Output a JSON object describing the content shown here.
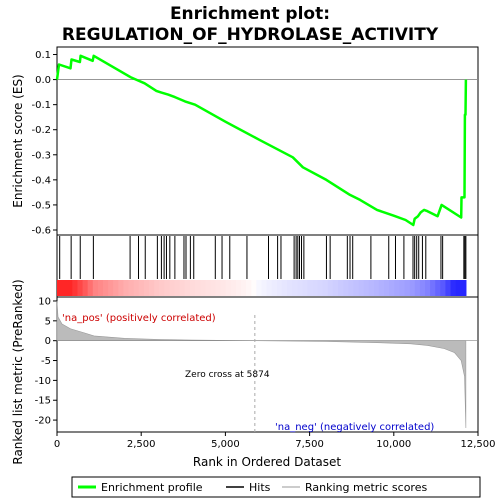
{
  "chart_data": {
    "type": "line",
    "title_line1": "Enrichment plot:",
    "title_line2": "REGULATION_OF_HYDROLASE_ACTIVITY",
    "es_ylabel": "Enrichment score (ES)",
    "rank_ylabel_line1": "Ranked list metric (PreRanked)",
    "xlabel": "Rank in Ordered Dataset",
    "xlim": [
      0,
      12500
    ],
    "es_ylim": [
      -0.62,
      0.13
    ],
    "metric_ylim": [
      -23,
      11
    ],
    "x_ticks": [
      0,
      2500,
      5000,
      7500,
      10000,
      12500
    ],
    "x_tick_labels": [
      "0",
      "2,500",
      "5,000",
      "7,500",
      "10,000",
      "12,500"
    ],
    "es_ticks": [
      0.1,
      0.0,
      -0.1,
      -0.2,
      -0.3,
      -0.4,
      -0.5,
      -0.6
    ],
    "es_tick_labels": [
      "0.1",
      "0.0",
      "-0.1",
      "-0.2",
      "-0.3",
      "-0.4",
      "-0.5",
      "-0.6"
    ],
    "metric_ticks": [
      10,
      5,
      0,
      -5,
      -10,
      -15,
      -20
    ],
    "metric_tick_labels": [
      "10",
      "5",
      "0",
      "-5",
      "-10",
      "-15",
      "-20"
    ],
    "enrichment_profile": [
      [
        0,
        0.0
      ],
      [
        60,
        0.06
      ],
      [
        400,
        0.045
      ],
      [
        430,
        0.08
      ],
      [
        680,
        0.07
      ],
      [
        700,
        0.095
      ],
      [
        1060,
        0.075
      ],
      [
        1090,
        0.095
      ],
      [
        2180,
        0.01
      ],
      [
        2350,
        0.0
      ],
      [
        2600,
        -0.015
      ],
      [
        2950,
        -0.045
      ],
      [
        3100,
        -0.052
      ],
      [
        3300,
        -0.06
      ],
      [
        3500,
        -0.07
      ],
      [
        3800,
        -0.087
      ],
      [
        4100,
        -0.1
      ],
      [
        5000,
        -0.168
      ],
      [
        6000,
        -0.24
      ],
      [
        7000,
        -0.31
      ],
      [
        7300,
        -0.35
      ],
      [
        8000,
        -0.4
      ],
      [
        8700,
        -0.46
      ],
      [
        9000,
        -0.48
      ],
      [
        9500,
        -0.52
      ],
      [
        10000,
        -0.543
      ],
      [
        10350,
        -0.56
      ],
      [
        10580,
        -0.58
      ],
      [
        10620,
        -0.555
      ],
      [
        10720,
        -0.545
      ],
      [
        10800,
        -0.53
      ],
      [
        10900,
        -0.52
      ],
      [
        11000,
        -0.525
      ],
      [
        11300,
        -0.545
      ],
      [
        11420,
        -0.5
      ],
      [
        12000,
        -0.55
      ],
      [
        12010,
        -0.47
      ],
      [
        12100,
        -0.47
      ],
      [
        12110,
        -0.14
      ],
      [
        12130,
        -0.14
      ],
      [
        12140,
        0.0
      ]
    ],
    "hits": [
      80,
      420,
      690,
      1080,
      2170,
      2420,
      2620,
      2980,
      3100,
      3180,
      3250,
      3350,
      3500,
      3770,
      3830,
      3960,
      4060,
      4700,
      4900,
      5130,
      5640,
      6280,
      6550,
      6650,
      7040,
      7100,
      7150,
      7200,
      7260,
      7330,
      8000,
      8110,
      8620,
      8700,
      8780,
      9320,
      9850,
      10050,
      10300,
      10570,
      10620,
      10680,
      10740,
      10850,
      10950,
      11400,
      11450,
      12080,
      12110,
      12140
    ],
    "ranked_metric": [
      [
        0,
        10
      ],
      [
        30,
        6
      ],
      [
        150,
        4.2
      ],
      [
        400,
        3
      ],
      [
        800,
        2
      ],
      [
        1100,
        1.2
      ],
      [
        2000,
        0.6
      ],
      [
        3000,
        0.3
      ],
      [
        4000,
        0.15
      ],
      [
        5874,
        0
      ],
      [
        8000,
        -0.2
      ],
      [
        9500,
        -0.5
      ],
      [
        10500,
        -0.8
      ],
      [
        11000,
        -1.2
      ],
      [
        11500,
        -2.0
      ],
      [
        11800,
        -3.0
      ],
      [
        12000,
        -5.0
      ],
      [
        12100,
        -9.0
      ],
      [
        12140,
        -22
      ]
    ],
    "zero_cross_label": "Zero cross at 5874",
    "zero_cross": 5874,
    "pos_label": "'na_pos' (positively correlated)",
    "neg_label": "'na_neg' (negatively correlated)",
    "legend": [
      "Enrichment profile",
      "Hits",
      "Ranking metric scores"
    ],
    "colors": {
      "enrichment": "#00ff00",
      "hits": "#000000",
      "metric": "#bbbbbb",
      "pos_label": "#cc0000",
      "neg_label": "#0000cc",
      "heat_pos_strong": "#ff0000",
      "heat_neutral": "#ffffff",
      "heat_neg_strong": "#0000ff"
    }
  }
}
